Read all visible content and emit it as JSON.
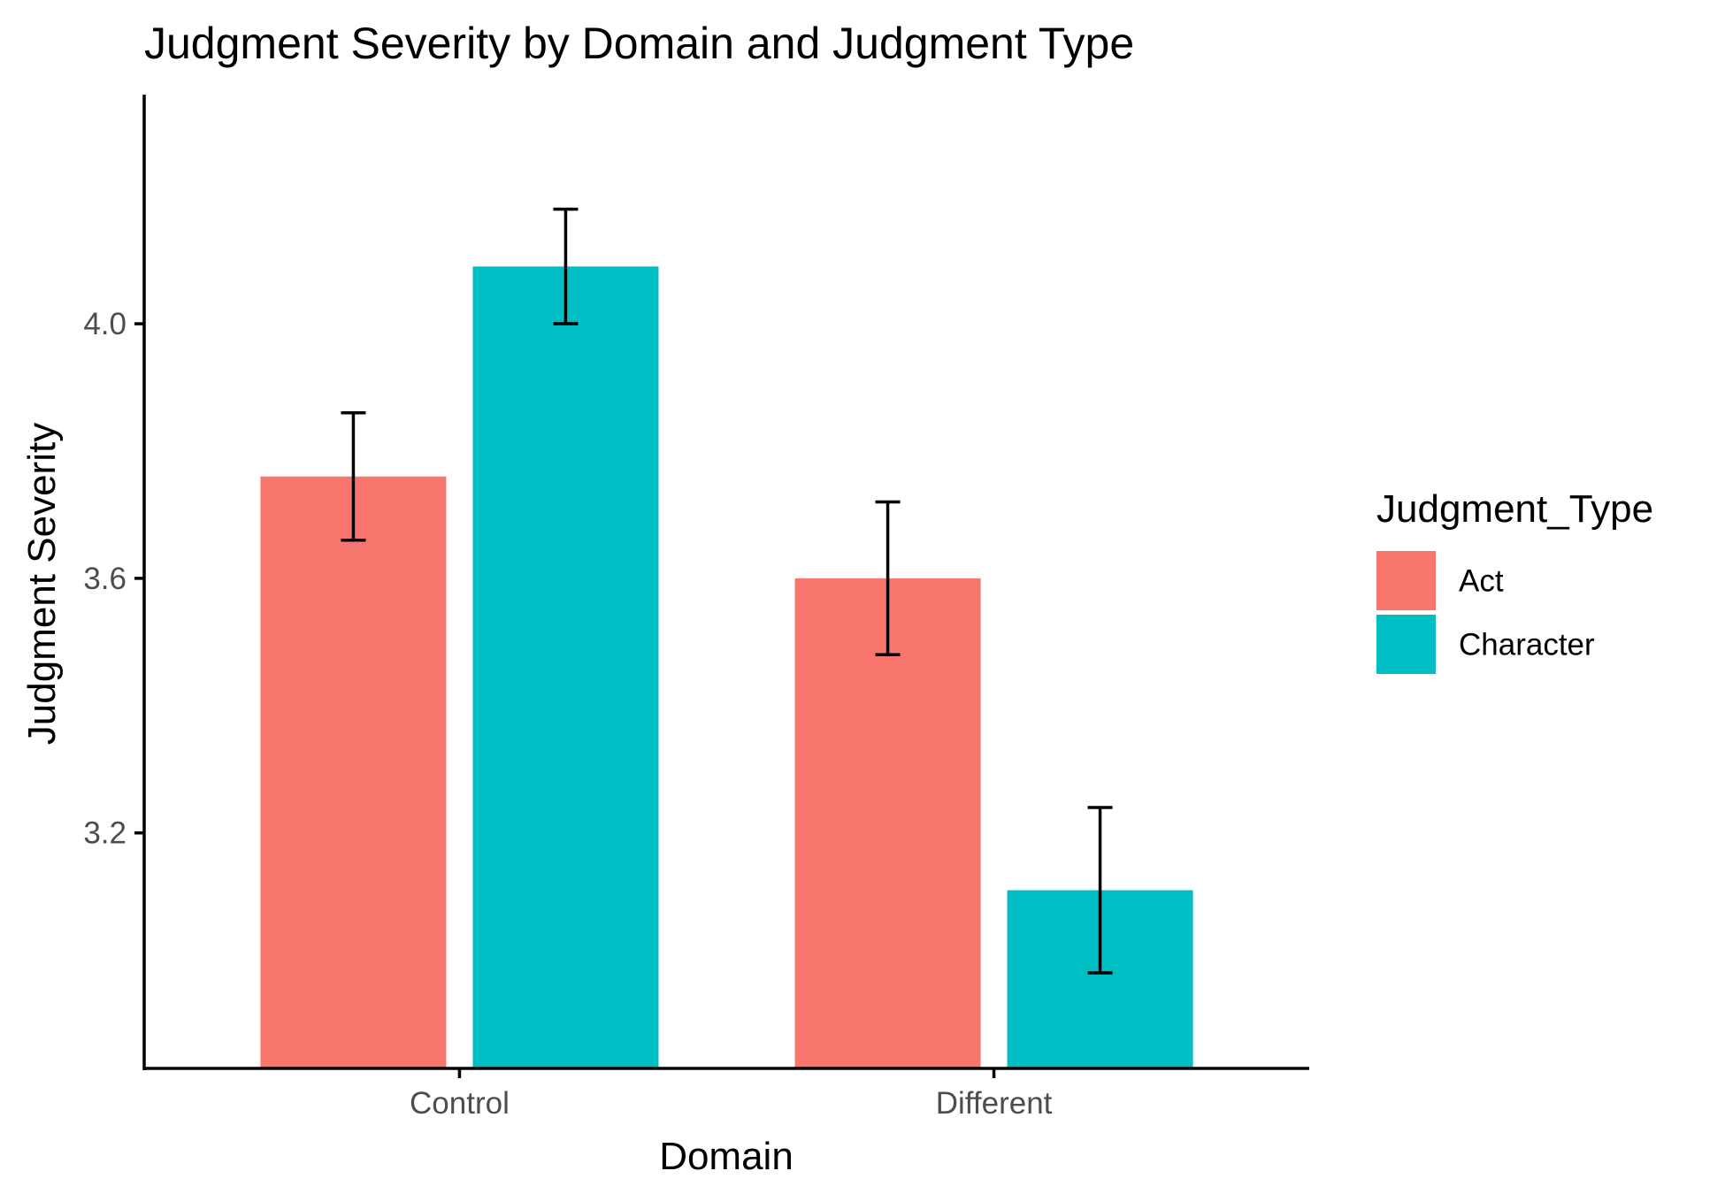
{
  "chart_data": {
    "type": "bar",
    "title": "Judgment Severity by Domain and Judgment Type",
    "xlabel": "Domain",
    "ylabel": "Judgment Severity",
    "categories": [
      "Control",
      "Different"
    ],
    "series": [
      {
        "name": "Act",
        "color": "#F8766D",
        "values": [
          3.76,
          3.6
        ],
        "error_low": [
          3.66,
          3.48
        ],
        "error_high": [
          3.86,
          3.72
        ]
      },
      {
        "name": "Character",
        "color": "#00BFC4",
        "values": [
          4.09,
          3.11
        ],
        "error_low": [
          4.0,
          2.98
        ],
        "error_high": [
          4.18,
          3.24
        ]
      }
    ],
    "yticks": [
      3.2,
      3.6,
      4.0
    ],
    "ytick_labels": [
      "3.2",
      "3.6",
      "4.0"
    ],
    "ylim": [
      2.83,
      4.36
    ],
    "grid": false,
    "legend": {
      "title": "Judgment_Type",
      "position": "right"
    }
  }
}
